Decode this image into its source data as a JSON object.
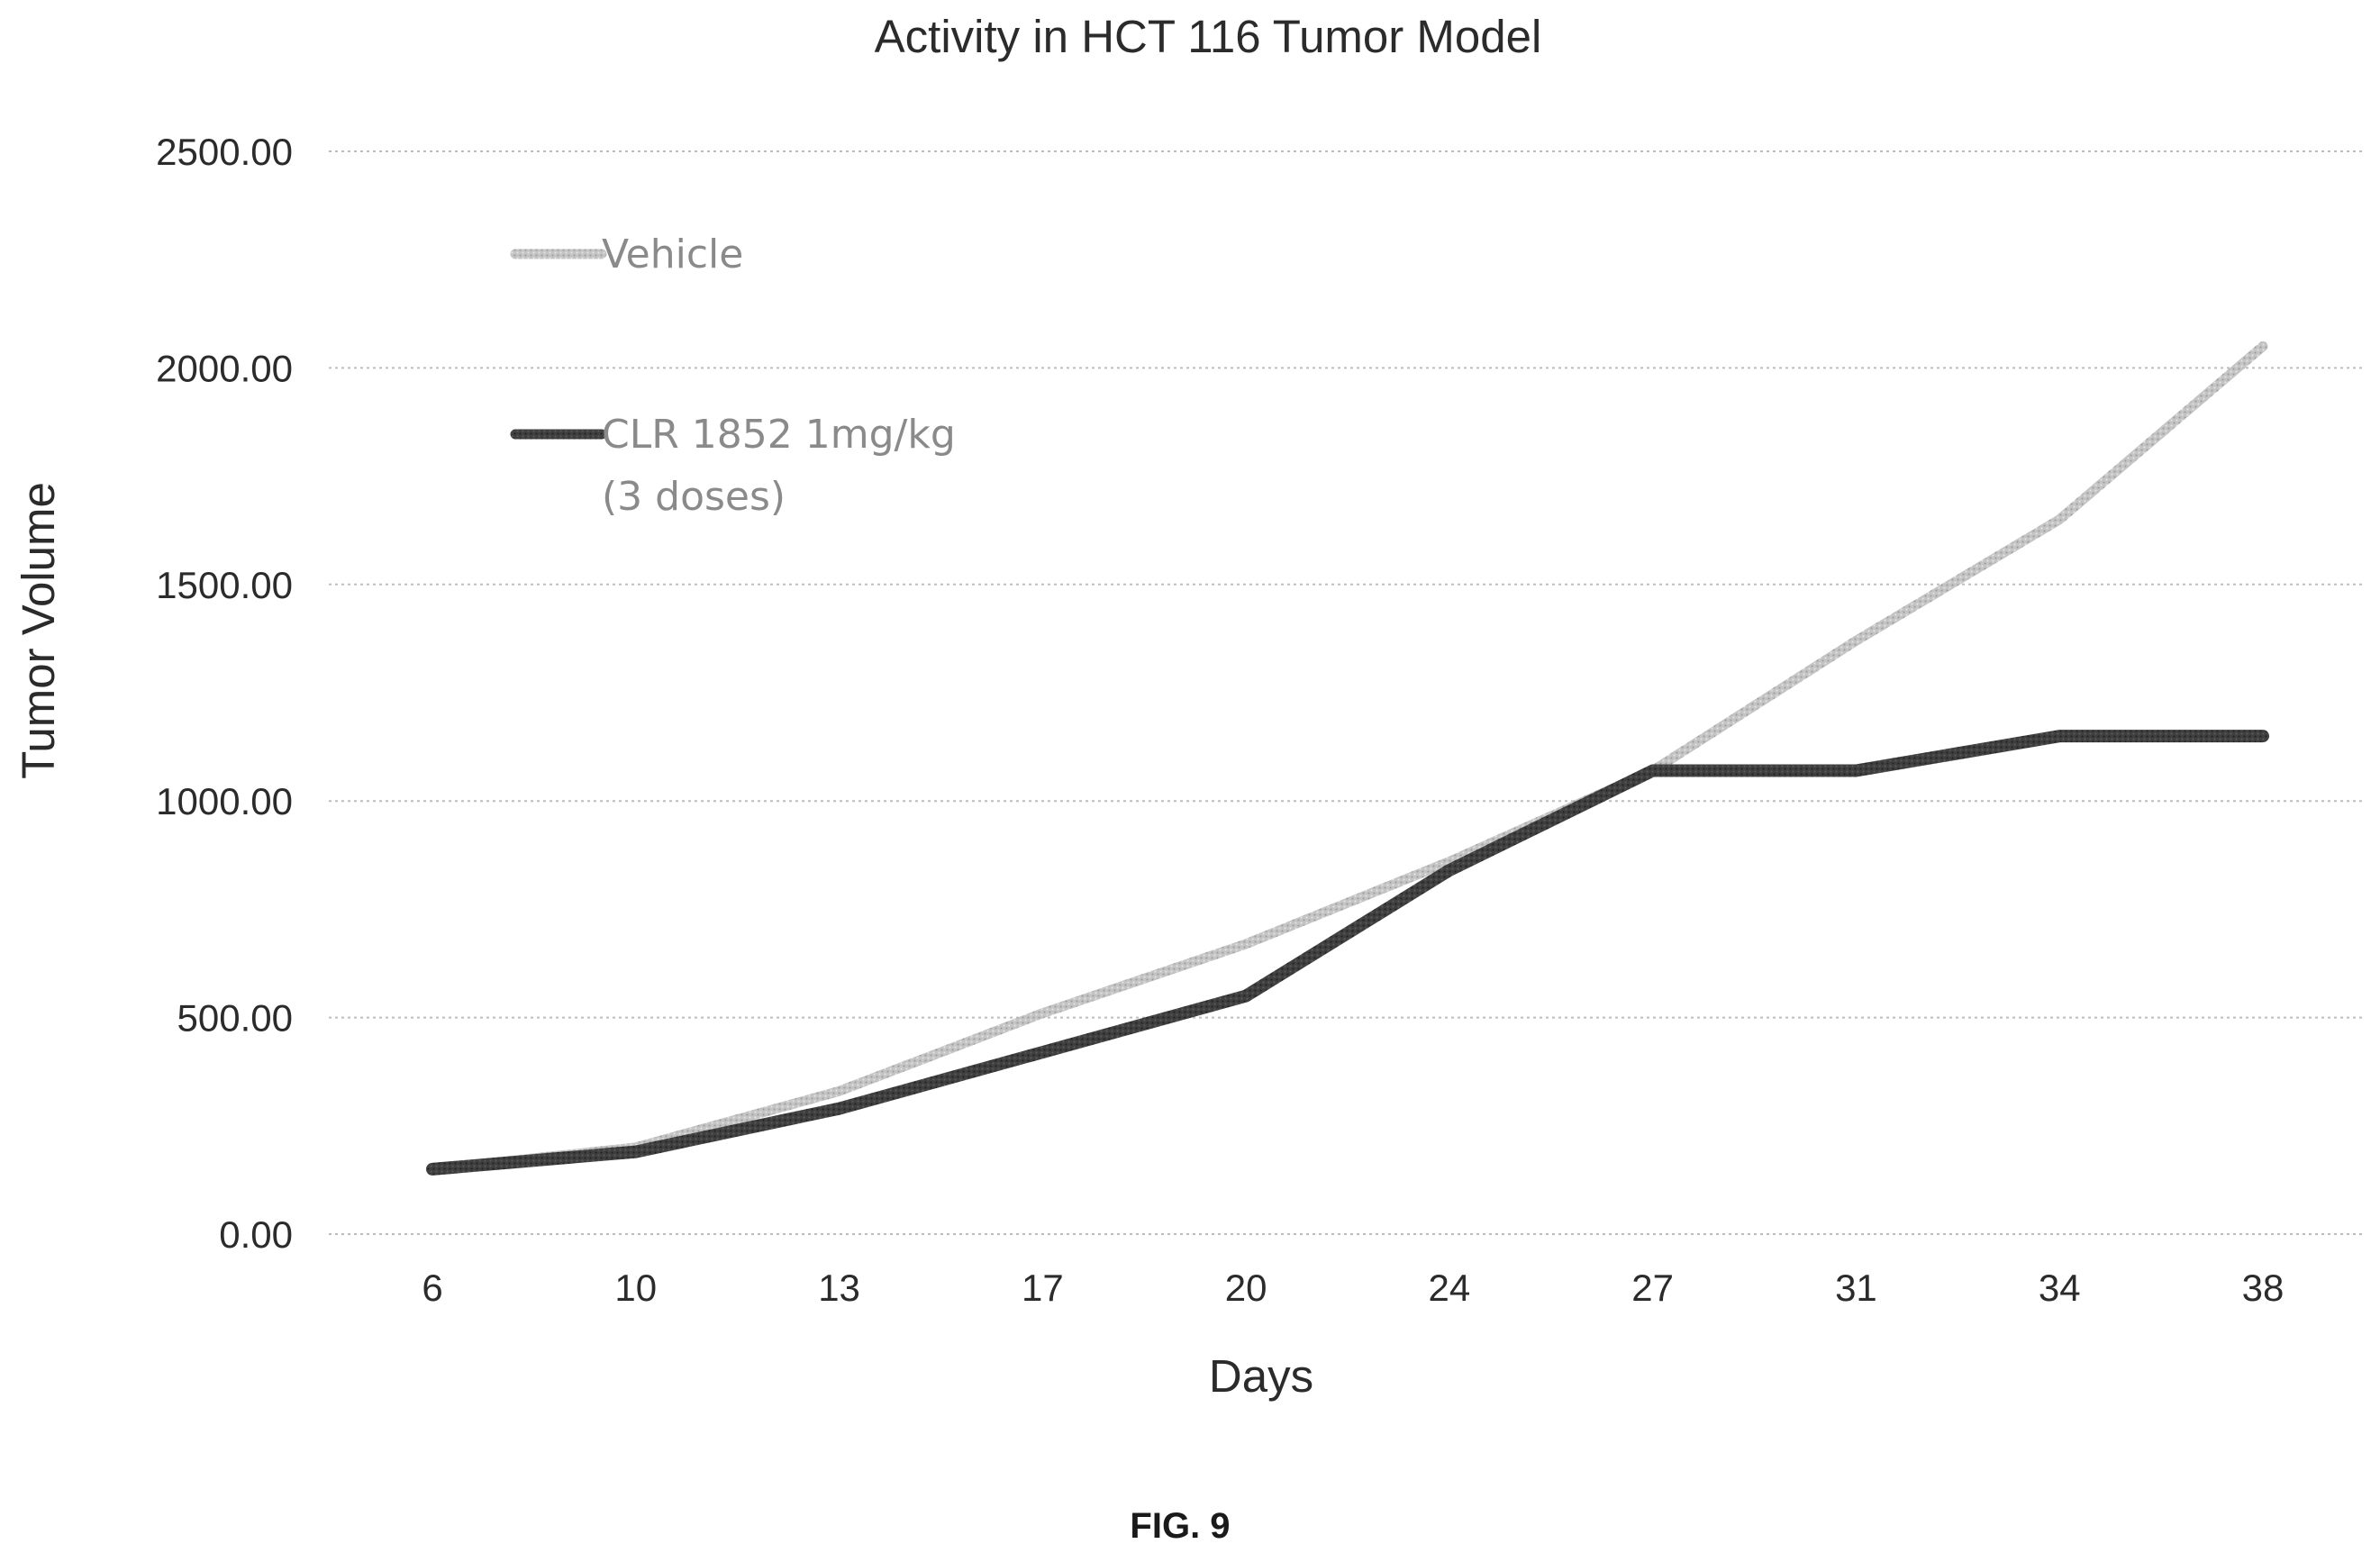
{
  "chart_data": {
    "type": "line",
    "title": "Activity in HCT 116 Tumor Model",
    "xlabel": "Days",
    "ylabel": "Tumor Volume",
    "categories": [
      "6",
      "10",
      "13",
      "17",
      "20",
      "24",
      "27",
      "31",
      "34",
      "38"
    ],
    "ylim": [
      0,
      2500
    ],
    "yticks": [
      "0.00",
      "500.00",
      "1000.00",
      "1500.00",
      "2000.00",
      "2500.00"
    ],
    "grid": true,
    "legend_position": "top-left",
    "series": [
      {
        "name": "Vehicle",
        "color": "#b8b8b8",
        "values": [
          150,
          200,
          330,
          510,
          670,
          860,
          1070,
          1370,
          1650,
          2050
        ]
      },
      {
        "name": "CLR 1852 1mg/kg (3 doses)",
        "name_lines": [
          "CLR 1852 1mg/kg",
          "(3 doses)"
        ],
        "color": "#3c3c3c",
        "values": [
          150,
          190,
          290,
          420,
          550,
          840,
          1070,
          1070,
          1150,
          1150
        ]
      }
    ]
  },
  "caption": "FIG. 9"
}
